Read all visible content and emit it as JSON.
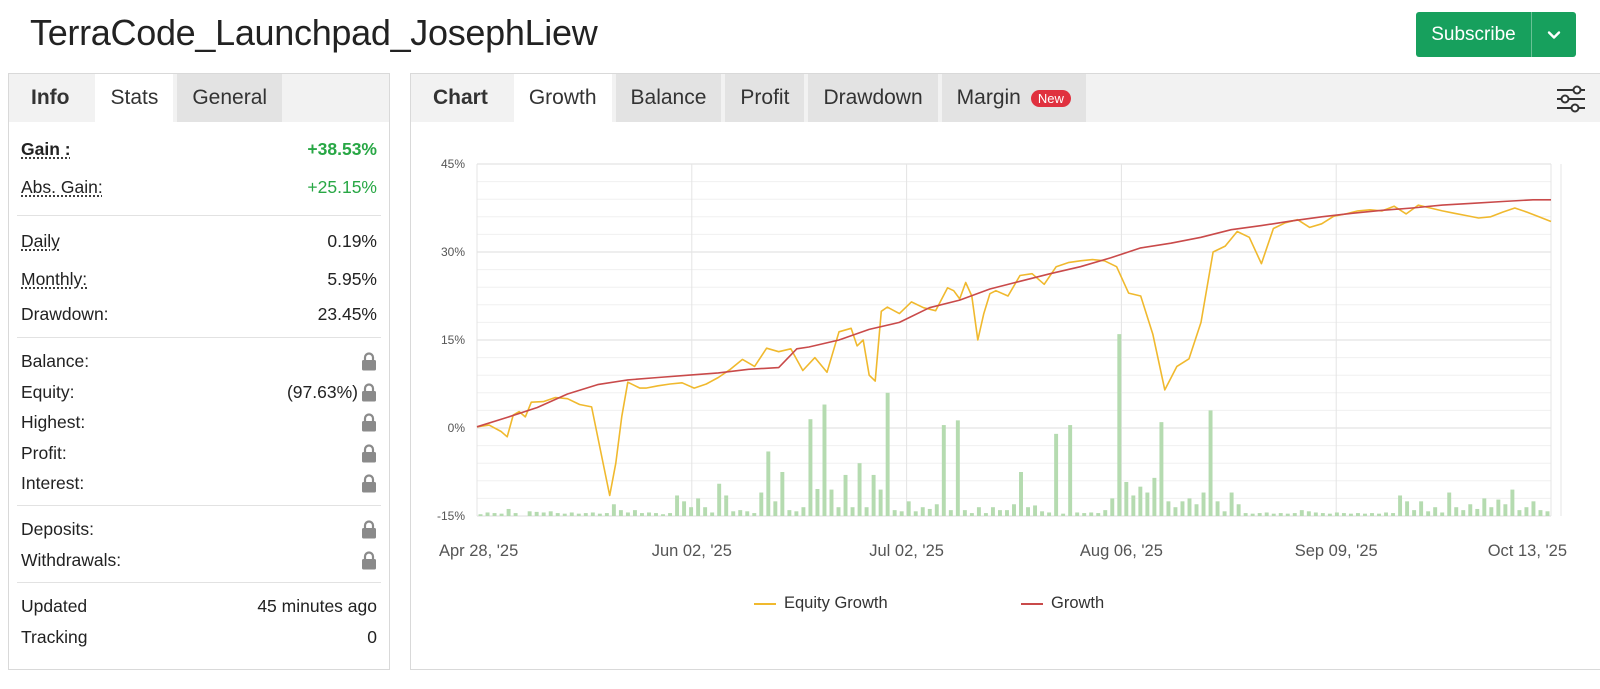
{
  "page_title": "TerraCode_Launchpad_JosephLiew",
  "subscribe": {
    "label": "Subscribe",
    "brand_color": "#17a05d"
  },
  "left_tabs": [
    {
      "label": "Info",
      "state": "heading"
    },
    {
      "label": "Stats",
      "state": "active"
    },
    {
      "label": "General",
      "state": "inactive"
    }
  ],
  "stats": {
    "gain": {
      "label": "Gain :",
      "value": "+38.53%"
    },
    "abs_gain": {
      "label": "Abs. Gain:",
      "value": "+25.15%"
    },
    "daily": {
      "label": "Daily",
      "value": "0.19%"
    },
    "monthly": {
      "label": "Monthly:",
      "value": "5.95%"
    },
    "drawdown": {
      "label": "Drawdown:",
      "value": "23.45%"
    },
    "balance": {
      "label": "Balance:",
      "icon": "lock-icon"
    },
    "equity": {
      "label": "Equity:",
      "value": "(97.63%)",
      "icon": "lock-icon"
    },
    "highest": {
      "label": "Highest:",
      "icon": "lock-icon"
    },
    "profit": {
      "label": "Profit:",
      "icon": "lock-icon"
    },
    "interest": {
      "label": "Interest:",
      "icon": "lock-icon"
    },
    "deposits": {
      "label": "Deposits:",
      "icon": "lock-icon"
    },
    "withdrawals": {
      "label": "Withdrawals:",
      "icon": "lock-icon"
    },
    "updated": {
      "label": "Updated",
      "value": "45 minutes ago"
    },
    "tracking": {
      "label": "Tracking",
      "value": "0"
    }
  },
  "chart_tabs": [
    {
      "label": "Chart",
      "state": "heading"
    },
    {
      "label": "Growth",
      "state": "active"
    },
    {
      "label": "Balance",
      "state": "inactive"
    },
    {
      "label": "Profit",
      "state": "inactive"
    },
    {
      "label": "Drawdown",
      "state": "inactive"
    },
    {
      "label": "Margin",
      "state": "inactive",
      "badge": "New"
    }
  ],
  "chart_settings_icon": "sliders-icon",
  "chart_data": {
    "type": "line",
    "y_ticks": [
      "45%",
      "30%",
      "15%",
      "0%",
      "-15%"
    ],
    "ylim": [
      -15,
      45
    ],
    "x_ticks": [
      "Apr 28, '25",
      "Jun 02, '25",
      "Jul 02, '25",
      "Aug 06, '25",
      "Sep 09, '25",
      "Oct 13, '25"
    ],
    "grid": true,
    "legend_position": "bottom",
    "series": [
      {
        "name": "Equity Growth",
        "color": "#f0b92e",
        "x": [
          0,
          2,
          4,
          5,
          6,
          7,
          8,
          9,
          11,
          13,
          15,
          17,
          19,
          21,
          22,
          23,
          24,
          25,
          26,
          27,
          28,
          30,
          32,
          34,
          36,
          38,
          40,
          42,
          44,
          46,
          48,
          50,
          52,
          54,
          56,
          58,
          60,
          62,
          63,
          64,
          65,
          66,
          67,
          68,
          70,
          72,
          74,
          76,
          78,
          79,
          80,
          81,
          82,
          83,
          84,
          85,
          86,
          88,
          90,
          92,
          94,
          96,
          98,
          100,
          102,
          104,
          106,
          108,
          110,
          112,
          114,
          116,
          118,
          120,
          122,
          124,
          126,
          128,
          130,
          132,
          134,
          136,
          138,
          140,
          142,
          144,
          146,
          148,
          150,
          152,
          154,
          156,
          158,
          160,
          162,
          164,
          166,
          168,
          170,
          172,
          174,
          176,
          178
        ],
        "values": [
          0.2,
          0.5,
          -0.6,
          -1.5,
          2.2,
          2.8,
          1.9,
          4.4,
          4.5,
          5.2,
          5.0,
          4.0,
          3.6,
          -6.5,
          -11.5,
          -6.0,
          2.0,
          7.8,
          7.3,
          6.8,
          6.8,
          7.2,
          7.5,
          7.7,
          6.8,
          7.5,
          8.6,
          10.0,
          11.7,
          10.5,
          13.6,
          13.0,
          13.5,
          9.8,
          12.0,
          9.5,
          16.4,
          17.0,
          14.0,
          15.0,
          9.0,
          8.0,
          19.9,
          20.6,
          19.5,
          21.5,
          20.5,
          20.0,
          23.9,
          23.4,
          22.0,
          24.8,
          22.5,
          15.0,
          19.5,
          22.9,
          23.4,
          22.5,
          26.0,
          26.3,
          24.5,
          27.5,
          28.2,
          28.5,
          28.7,
          28.5,
          27.5,
          23.0,
          22.5,
          16.0,
          6.5,
          10.5,
          11.8,
          18.0,
          30.0,
          31.0,
          33.5,
          32.5,
          28.0,
          34.0,
          35.0,
          35.5,
          34.2,
          34.8,
          36.1,
          36.5,
          37.0,
          37.2,
          37.0,
          37.8,
          36.5,
          38.0,
          37.5,
          37.0,
          36.6,
          36.2,
          35.8,
          36.0,
          36.8,
          37.5,
          36.8,
          36.0,
          35.2
        ]
      },
      {
        "name": "Growth",
        "color": "#c94a4a",
        "x": [
          0,
          5,
          10,
          15,
          20,
          25,
          30,
          35,
          40,
          45,
          50,
          53,
          55,
          60,
          65,
          70,
          75,
          80,
          85,
          90,
          95,
          100,
          105,
          110,
          115,
          120,
          125,
          130,
          135,
          140,
          145,
          150,
          155,
          160,
          165,
          170,
          175,
          178
        ],
        "values": [
          0.2,
          1.8,
          3.5,
          5.8,
          7.4,
          8.2,
          8.6,
          9.0,
          9.4,
          10.0,
          10.3,
          13.5,
          13.8,
          15.0,
          16.8,
          18.0,
          20.5,
          21.8,
          23.7,
          25.0,
          26.3,
          27.5,
          29.0,
          30.7,
          31.5,
          32.5,
          33.8,
          34.5,
          35.3,
          36.0,
          36.6,
          37.1,
          37.5,
          38.0,
          38.3,
          38.6,
          38.9,
          38.9
        ]
      }
    ],
    "bars_label": "",
    "bars": [
      0.3,
      0.6,
      0.5,
      0.4,
      1.2,
      0.5,
      0.0,
      0.8,
      0.7,
      0.6,
      0.8,
      0.5,
      0.4,
      0.6,
      0.4,
      0.5,
      0.6,
      0.4,
      0.5,
      2.0,
      1.0,
      0.6,
      1.0,
      0.5,
      0.6,
      0.5,
      0.3,
      0.5,
      3.5,
      2.5,
      1.5,
      3.0,
      1.5,
      0.6,
      5.5,
      3.5,
      0.8,
      1.0,
      0.8,
      0.5,
      4.0,
      11.0,
      2.5,
      7.5,
      1.0,
      0.8,
      1.5,
      16.5,
      4.6,
      19.0,
      4.5,
      1.5,
      7.0,
      1.5,
      9.0,
      1.5,
      7.0,
      4.5,
      21.0,
      1.0,
      0.8,
      2.5,
      0.8,
      1.5,
      1.2,
      2.0,
      15.5,
      1.0,
      16.3,
      1.0,
      0.5,
      1.5,
      0.5,
      1.5,
      1.0,
      1.0,
      2.0,
      7.5,
      1.5,
      1.8,
      0.8,
      0.6,
      14.0,
      0.4,
      15.5,
      0.6,
      0.5,
      0.6,
      0.5,
      1.0,
      3.0,
      31.0,
      5.8,
      3.5,
      5.0,
      4.0,
      6.5,
      16.0,
      2.5,
      1.5,
      2.5,
      3.0,
      2.0,
      4.0,
      18.0,
      2.5,
      0.8,
      4.0,
      2.0,
      0.5,
      0.4,
      0.5,
      0.6,
      0.4,
      0.5,
      0.4,
      0.5,
      1.0,
      0.8,
      0.6,
      0.5,
      0.4,
      0.6,
      0.5,
      0.4,
      0.5,
      0.4,
      0.5,
      0.4,
      0.6,
      0.5,
      3.5,
      2.5,
      1.0,
      2.5,
      0.8,
      1.5,
      0.6,
      4.0,
      1.5,
      1.0,
      2.0,
      1.2,
      3.0,
      1.5,
      2.8,
      2.0,
      4.5,
      1.0,
      1.5,
      2.5,
      1.0,
      0.8
    ]
  }
}
